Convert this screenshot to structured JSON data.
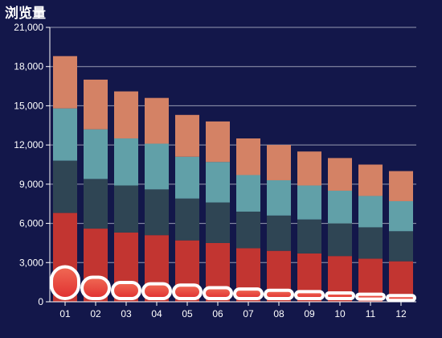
{
  "colors": {
    "background": "#13174a",
    "grid": "#b8bccb",
    "axis": "#ffffff",
    "text": "#ffffff",
    "pill_border": "#ffffff",
    "pill_fill_top": "#f06a55",
    "pill_fill_bottom": "#e03030"
  },
  "chart_data": {
    "type": "bar",
    "stacked": true,
    "title": "浏览量",
    "xlabel": "",
    "ylabel": "",
    "categories": [
      "01",
      "02",
      "03",
      "04",
      "05",
      "06",
      "07",
      "08",
      "09",
      "10",
      "11",
      "12"
    ],
    "ylim": [
      0,
      21000
    ],
    "yticks": [
      0,
      3000,
      6000,
      9000,
      12000,
      15000,
      18000,
      21000
    ],
    "ytick_labels": [
      "0",
      "3,000",
      "6,000",
      "9,000",
      "12,000",
      "15,000",
      "18,000",
      "21,000"
    ],
    "grid": true,
    "legend": "none",
    "series": [
      {
        "color": "#c23531",
        "values": [
          6800,
          5600,
          5300,
          5100,
          4700,
          4500,
          4100,
          3900,
          3700,
          3500,
          3300,
          3100
        ]
      },
      {
        "color": "#2f4554",
        "values": [
          4000,
          3800,
          3600,
          3500,
          3200,
          3100,
          2800,
          2700,
          2600,
          2500,
          2400,
          2300
        ]
      },
      {
        "color": "#61a0a8",
        "values": [
          4000,
          3800,
          3600,
          3500,
          3200,
          3100,
          2800,
          2700,
          2600,
          2500,
          2400,
          2300
        ]
      },
      {
        "color": "#d48265",
        "values": [
          4000,
          3800,
          3600,
          3500,
          3200,
          3100,
          2800,
          2700,
          2600,
          2500,
          2400,
          2300
        ]
      }
    ],
    "base_pill_values": [
      2800,
      2000,
      1600,
      1500,
      1400,
      1200,
      1100,
      1000,
      900,
      800,
      700,
      600
    ]
  }
}
